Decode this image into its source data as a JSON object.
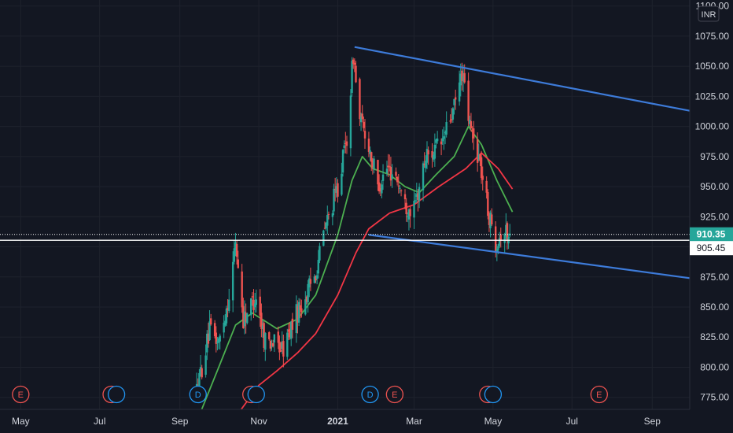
{
  "currency": "INR",
  "colors": {
    "background": "#131722",
    "grid": "#1e222d",
    "up": "#26a69a",
    "down": "#ef5350",
    "ema_fast": "#4caf50",
    "ema_slow": "#f23645",
    "channel": "#3d7bd9",
    "last_price_bg": "#26a69a",
    "earnings": "#ef5350",
    "dividend": "#2196f3"
  },
  "chart_data": {
    "type": "candlestick",
    "ylim": [
      765,
      1105
    ],
    "xlim": [
      "2020-04-15",
      "2021-09-30"
    ],
    "y_ticks": [
      "1100.00",
      "1075.00",
      "1050.00",
      "1025.00",
      "1000.00",
      "975.00",
      "950.00",
      "925.00",
      "900.00",
      "875.00",
      "850.00",
      "825.00",
      "800.00",
      "775.00"
    ],
    "x_ticks": [
      {
        "date": "2020-05-01",
        "label": "May",
        "bold": false
      },
      {
        "date": "2020-07-01",
        "label": "Jul",
        "bold": false
      },
      {
        "date": "2020-09-01",
        "label": "Sep",
        "bold": false
      },
      {
        "date": "2020-11-01",
        "label": "Nov",
        "bold": false
      },
      {
        "date": "2021-01-01",
        "label": "2021",
        "bold": true
      },
      {
        "date": "2021-03-01",
        "label": "Mar",
        "bold": false
      },
      {
        "date": "2021-05-01",
        "label": "May",
        "bold": false
      },
      {
        "date": "2021-07-01",
        "label": "Jul",
        "bold": false
      },
      {
        "date": "2021-09-01",
        "label": "Sep",
        "bold": false
      }
    ],
    "candles_start": "2020-09-14",
    "candles_end": "2021-05-14",
    "price_path": [
      [
        "2020-09-14",
        780
      ],
      [
        "2020-09-24",
        830
      ],
      [
        "2020-10-01",
        820
      ],
      [
        "2020-10-10",
        865
      ],
      [
        "2020-10-14",
        905
      ],
      [
        "2020-10-20",
        840
      ],
      [
        "2020-10-30",
        860
      ],
      [
        "2020-11-05",
        825
      ],
      [
        "2020-11-20",
        815
      ],
      [
        "2020-11-28",
        840
      ],
      [
        "2020-12-08",
        860
      ],
      [
        "2020-12-15",
        880
      ],
      [
        "2020-12-22",
        915
      ],
      [
        "2021-01-01",
        950
      ],
      [
        "2021-01-08",
        990
      ],
      [
        "2021-01-13",
        1060
      ],
      [
        "2021-01-18",
        1005
      ],
      [
        "2021-01-25",
        985
      ],
      [
        "2021-02-01",
        950
      ],
      [
        "2021-02-08",
        965
      ],
      [
        "2021-02-15",
        960
      ],
      [
        "2021-02-22",
        935
      ],
      [
        "2021-03-01",
        930
      ],
      [
        "2021-03-10",
        975
      ],
      [
        "2021-03-22",
        985
      ],
      [
        "2021-04-01",
        1015
      ],
      [
        "2021-04-07",
        1045
      ],
      [
        "2021-04-13",
        1000
      ],
      [
        "2021-04-20",
        975
      ],
      [
        "2021-04-28",
        925
      ],
      [
        "2021-05-03",
        905
      ],
      [
        "2021-05-09",
        915
      ],
      [
        "2021-05-14",
        907
      ]
    ],
    "ema_fast": [
      [
        "2020-09-16",
        760
      ],
      [
        "2020-10-01",
        800
      ],
      [
        "2020-10-14",
        835
      ],
      [
        "2020-10-27",
        845
      ],
      [
        "2020-11-15",
        832
      ],
      [
        "2020-12-01",
        840
      ],
      [
        "2020-12-15",
        860
      ],
      [
        "2021-01-01",
        910
      ],
      [
        "2021-01-12",
        955
      ],
      [
        "2021-01-20",
        975
      ],
      [
        "2021-01-28",
        965
      ],
      [
        "2021-02-10",
        960
      ],
      [
        "2021-02-22",
        950
      ],
      [
        "2021-03-05",
        945
      ],
      [
        "2021-03-18",
        960
      ],
      [
        "2021-04-01",
        975
      ],
      [
        "2021-04-12",
        1000
      ],
      [
        "2021-04-22",
        985
      ],
      [
        "2021-05-04",
        955
      ],
      [
        "2021-05-16",
        929
      ]
    ],
    "ema_slow": [
      [
        "2020-10-15",
        760
      ],
      [
        "2020-11-01",
        785
      ],
      [
        "2020-11-15",
        797
      ],
      [
        "2020-12-01",
        812
      ],
      [
        "2020-12-15",
        828
      ],
      [
        "2021-01-01",
        860
      ],
      [
        "2021-01-15",
        895
      ],
      [
        "2021-01-25",
        915
      ],
      [
        "2021-02-10",
        928
      ],
      [
        "2021-03-01",
        935
      ],
      [
        "2021-03-20",
        950
      ],
      [
        "2021-04-10",
        965
      ],
      [
        "2021-04-22",
        978
      ],
      [
        "2021-05-05",
        965
      ],
      [
        "2021-05-16",
        948
      ]
    ],
    "trendlines": [
      {
        "from": [
          "2021-01-14",
          1066
        ],
        "to": [
          "2021-09-30",
          1013
        ]
      },
      {
        "from": [
          "2021-01-25",
          910
        ],
        "to": [
          "2021-09-30",
          874
        ]
      }
    ],
    "horizontal_lines": [
      910.35,
      905.45
    ],
    "last_price": "910.35",
    "level_label": "905.45",
    "events": [
      {
        "date": "2020-05-01",
        "letter": "E",
        "kind": "earnings"
      },
      {
        "date": "2020-07-10",
        "letter": "E",
        "kind": "earnings"
      },
      {
        "date": "2020-07-14",
        "letter": "",
        "kind": "dividend"
      },
      {
        "date": "2020-09-15",
        "letter": "D",
        "kind": "dividend"
      },
      {
        "date": "2020-10-26",
        "letter": "E",
        "kind": "earnings"
      },
      {
        "date": "2020-10-30",
        "letter": "",
        "kind": "dividend"
      },
      {
        "date": "2021-01-26",
        "letter": "D",
        "kind": "dividend"
      },
      {
        "date": "2021-02-14",
        "letter": "E",
        "kind": "earnings"
      },
      {
        "date": "2021-04-27",
        "letter": "E",
        "kind": "earnings"
      },
      {
        "date": "2021-05-01",
        "letter": "",
        "kind": "dividend"
      },
      {
        "date": "2021-07-22",
        "letter": "E",
        "kind": "earnings"
      }
    ]
  }
}
